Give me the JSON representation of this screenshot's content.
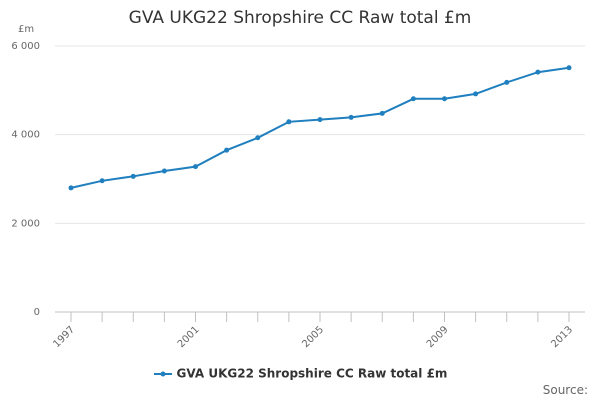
{
  "chart_data": {
    "type": "line",
    "title": "GVA UKG22 Shropshire CC Raw total £m",
    "ylabel": "£m",
    "xlabel": "",
    "ylim": [
      0,
      6000
    ],
    "yticks": [
      0,
      2000,
      4000,
      6000
    ],
    "ytick_labels": [
      "0",
      "2 000",
      "4 000",
      "6 000"
    ],
    "x": [
      1997,
      1998,
      1999,
      2000,
      2001,
      2002,
      2003,
      2004,
      2005,
      2006,
      2007,
      2008,
      2009,
      2010,
      2011,
      2012,
      2013
    ],
    "xtick_labels": [
      "1997",
      "2001",
      "2005",
      "2009",
      "2013"
    ],
    "series": [
      {
        "name": "GVA UKG22 Shropshire CC Raw total £m",
        "color": "#1f7fbf",
        "values": [
          2800,
          2960,
          3060,
          3180,
          3280,
          3650,
          3930,
          4290,
          4340,
          4390,
          4480,
          4810,
          4810,
          4920,
          5180,
          5410,
          5510
        ]
      }
    ],
    "grid": true,
    "legend_position": "bottom",
    "source_label": "Source:"
  }
}
